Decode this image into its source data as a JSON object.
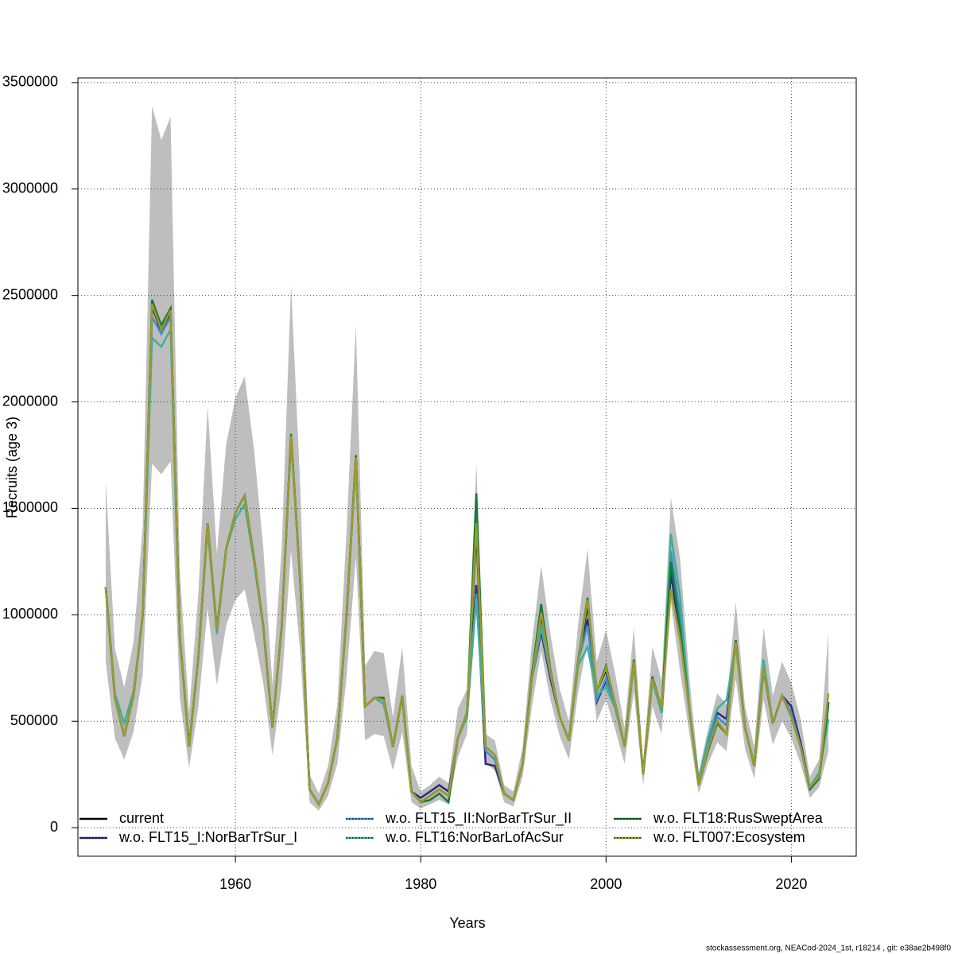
{
  "chart_data": {
    "type": "line",
    "xlabel": "Years",
    "ylabel": "Recruits (age 3)",
    "footer": "stockassessment.org, NEACod-2024_1st, r18214 , git: e38ae2b498f0",
    "x": [
      1946,
      1947,
      1948,
      1949,
      1950,
      1951,
      1952,
      1953,
      1954,
      1955,
      1956,
      1957,
      1958,
      1959,
      1960,
      1961,
      1962,
      1963,
      1964,
      1965,
      1966,
      1967,
      1968,
      1969,
      1970,
      1971,
      1972,
      1973,
      1974,
      1975,
      1976,
      1977,
      1978,
      1979,
      1980,
      1981,
      1982,
      1983,
      1984,
      1985,
      1986,
      1987,
      1988,
      1989,
      1990,
      1991,
      1992,
      1993,
      1994,
      1995,
      1996,
      1997,
      1998,
      1999,
      2000,
      2001,
      2002,
      2003,
      2004,
      2005,
      2006,
      2007,
      2008,
      2009,
      2010,
      2011,
      2012,
      2013,
      2014,
      2015,
      2016,
      2017,
      2018,
      2019,
      2020,
      2021,
      2022,
      2023,
      2024
    ],
    "xlim": [
      1943,
      2027
    ],
    "xticks": [
      1960,
      1980,
      2000,
      2020
    ],
    "ylim": [
      -134000,
      3522000
    ],
    "yticks": [
      0,
      500000,
      1000000,
      1500000,
      2000000,
      2500000,
      3000000,
      3500000
    ],
    "grid": true,
    "band_color": "#bebebe",
    "ci_lower": [
      780000,
      420000,
      320000,
      450000,
      720000,
      1710000,
      1660000,
      1720000,
      610000,
      280000,
      570000,
      1030000,
      670000,
      950000,
      1070000,
      1120000,
      910000,
      680000,
      340000,
      670000,
      1300000,
      820000,
      120000,
      80000,
      150000,
      300000,
      710000,
      1270000,
      410000,
      440000,
      430000,
      270000,
      450000,
      120000,
      90000,
      110000,
      130000,
      110000,
      330000,
      440000,
      1140000,
      300000,
      270000,
      120000,
      100000,
      240000,
      570000,
      830000,
      600000,
      430000,
      320000,
      640000,
      870000,
      500000,
      600000,
      460000,
      300000,
      640000,
      200000,
      570000,
      440000,
      1060000,
      730000,
      440000,
      160000,
      300000,
      400000,
      360000,
      700000,
      370000,
      230000,
      600000,
      390000,
      500000,
      420000,
      300000,
      140000,
      190000,
      360000
    ],
    "ci_upper": [
      1630000,
      840000,
      660000,
      870000,
      1420000,
      3390000,
      3230000,
      3340000,
      1200000,
      540000,
      1100000,
      1980000,
      1290000,
      1800000,
      2020000,
      2120000,
      1780000,
      1320000,
      670000,
      1320000,
      2550000,
      1600000,
      250000,
      160000,
      290000,
      580000,
      1400000,
      2360000,
      760000,
      830000,
      820000,
      520000,
      850000,
      290000,
      170000,
      200000,
      240000,
      210000,
      560000,
      650000,
      1710000,
      440000,
      410000,
      200000,
      170000,
      380000,
      870000,
      1230000,
      910000,
      650000,
      500000,
      960000,
      1310000,
      780000,
      930000,
      720000,
      470000,
      940000,
      310000,
      850000,
      690000,
      1550000,
      1260000,
      700000,
      260000,
      460000,
      630000,
      580000,
      1060000,
      570000,
      380000,
      940000,
      620000,
      780000,
      680000,
      510000,
      240000,
      320000,
      920000
    ],
    "series": [
      {
        "name": "current",
        "color": "#000000",
        "values": [
          1130000,
          610000,
          430000,
          620000,
          1000000,
          2450000,
          2330000,
          2420000,
          900000,
          380000,
          800000,
          1430000,
          930000,
          1310000,
          1480000,
          1560000,
          1270000,
          950000,
          470000,
          950000,
          1840000,
          1150000,
          180000,
          110000,
          210000,
          420000,
          1000000,
          1740000,
          570000,
          610000,
          600000,
          380000,
          620000,
          170000,
          120000,
          150000,
          180000,
          150000,
          420000,
          540000,
          1400000,
          380000,
          340000,
          160000,
          130000,
          300000,
          700000,
          1000000,
          730000,
          520000,
          410000,
          780000,
          1050000,
          640000,
          740000,
          580000,
          380000,
          780000,
          250000,
          700000,
          560000,
          1200000,
          900000,
          550000,
          200000,
          370000,
          500000,
          440000,
          880000,
          470000,
          290000,
          750000,
          490000,
          620000,
          520000,
          380000,
          190000,
          240000,
          590000
        ]
      },
      {
        "name": "w.o. FLT15_I:NorBarTrSur_I",
        "color": "#2e2785",
        "values": [
          1130000,
          610000,
          430000,
          620000,
          1000000,
          2450000,
          2330000,
          2420000,
          900000,
          380000,
          800000,
          1430000,
          930000,
          1310000,
          1480000,
          1560000,
          1270000,
          950000,
          470000,
          950000,
          1840000,
          1150000,
          180000,
          110000,
          210000,
          420000,
          1000000,
          1740000,
          570000,
          610000,
          600000,
          380000,
          620000,
          170000,
          140000,
          170000,
          200000,
          170000,
          420000,
          540000,
          1140000,
          300000,
          290000,
          160000,
          130000,
          300000,
          700000,
          920000,
          700000,
          520000,
          410000,
          780000,
          980000,
          590000,
          690000,
          580000,
          380000,
          780000,
          250000,
          700000,
          540000,
          1200000,
          920000,
          550000,
          220000,
          400000,
          540000,
          510000,
          880000,
          470000,
          290000,
          750000,
          490000,
          620000,
          570000,
          400000,
          190000,
          240000,
          590000
        ]
      },
      {
        "name": "w.o. FLT15_II:NorBarTrSur_II",
        "color": "#3b8fc4",
        "values": [
          1130000,
          610000,
          430000,
          620000,
          1000000,
          2400000,
          2320000,
          2400000,
          900000,
          380000,
          800000,
          1430000,
          930000,
          1310000,
          1480000,
          1560000,
          1270000,
          950000,
          470000,
          950000,
          1840000,
          1150000,
          180000,
          110000,
          210000,
          420000,
          1000000,
          1740000,
          570000,
          610000,
          600000,
          380000,
          620000,
          170000,
          120000,
          150000,
          180000,
          150000,
          420000,
          540000,
          1100000,
          360000,
          320000,
          160000,
          130000,
          300000,
          700000,
          950000,
          730000,
          520000,
          410000,
          780000,
          950000,
          600000,
          700000,
          560000,
          380000,
          780000,
          250000,
          690000,
          540000,
          1300000,
          1000000,
          550000,
          220000,
          400000,
          520000,
          480000,
          880000,
          470000,
          290000,
          760000,
          490000,
          620000,
          540000,
          380000,
          190000,
          240000,
          570000
        ]
      },
      {
        "name": "w.o. FLT16:NorBarLofAcSur",
        "color": "#3fae9e",
        "values": [
          1130000,
          630000,
          490000,
          640000,
          1000000,
          2300000,
          2260000,
          2340000,
          880000,
          380000,
          800000,
          1410000,
          910000,
          1310000,
          1450000,
          1520000,
          1250000,
          940000,
          470000,
          950000,
          1820000,
          1150000,
          180000,
          110000,
          210000,
          420000,
          1000000,
          1720000,
          570000,
          610000,
          580000,
          380000,
          620000,
          170000,
          120000,
          150000,
          180000,
          150000,
          420000,
          520000,
          1080000,
          380000,
          340000,
          160000,
          130000,
          300000,
          700000,
          940000,
          720000,
          520000,
          410000,
          760000,
          850000,
          620000,
          660000,
          560000,
          380000,
          770000,
          250000,
          690000,
          540000,
          1380000,
          1080000,
          560000,
          220000,
          420000,
          560000,
          600000,
          860000,
          470000,
          300000,
          790000,
          490000,
          620000,
          520000,
          380000,
          190000,
          260000,
          510000
        ]
      },
      {
        "name": "w.o. FLT18:RusSweptArea",
        "color": "#177a35",
        "values": [
          1130000,
          610000,
          430000,
          620000,
          1000000,
          2480000,
          2360000,
          2440000,
          900000,
          380000,
          800000,
          1430000,
          930000,
          1310000,
          1480000,
          1560000,
          1270000,
          950000,
          470000,
          950000,
          1850000,
          1150000,
          180000,
          110000,
          210000,
          420000,
          1000000,
          1750000,
          570000,
          610000,
          610000,
          380000,
          620000,
          170000,
          120000,
          130000,
          160000,
          120000,
          420000,
          540000,
          1570000,
          380000,
          340000,
          160000,
          130000,
          300000,
          720000,
          1050000,
          740000,
          520000,
          410000,
          790000,
          1080000,
          640000,
          760000,
          580000,
          380000,
          790000,
          250000,
          710000,
          560000,
          1250000,
          930000,
          550000,
          200000,
          360000,
          490000,
          440000,
          880000,
          470000,
          290000,
          740000,
          490000,
          620000,
          520000,
          380000,
          180000,
          230000,
          580000
        ]
      },
      {
        "name": "w.o. FLT007:Ecosystem",
        "color": "#9c9a2c",
        "values": [
          1130000,
          610000,
          430000,
          620000,
          1000000,
          2460000,
          2340000,
          2430000,
          900000,
          380000,
          800000,
          1430000,
          930000,
          1310000,
          1480000,
          1560000,
          1270000,
          950000,
          470000,
          950000,
          1840000,
          1150000,
          180000,
          110000,
          210000,
          420000,
          1000000,
          1740000,
          570000,
          610000,
          600000,
          380000,
          620000,
          170000,
          120000,
          150000,
          180000,
          150000,
          420000,
          540000,
          1430000,
          380000,
          340000,
          160000,
          130000,
          300000,
          700000,
          1010000,
          730000,
          520000,
          410000,
          780000,
          1070000,
          640000,
          750000,
          580000,
          380000,
          780000,
          250000,
          700000,
          560000,
          1120000,
          880000,
          550000,
          200000,
          370000,
          500000,
          440000,
          870000,
          470000,
          290000,
          750000,
          490000,
          620000,
          520000,
          380000,
          190000,
          240000,
          630000
        ]
      }
    ]
  }
}
